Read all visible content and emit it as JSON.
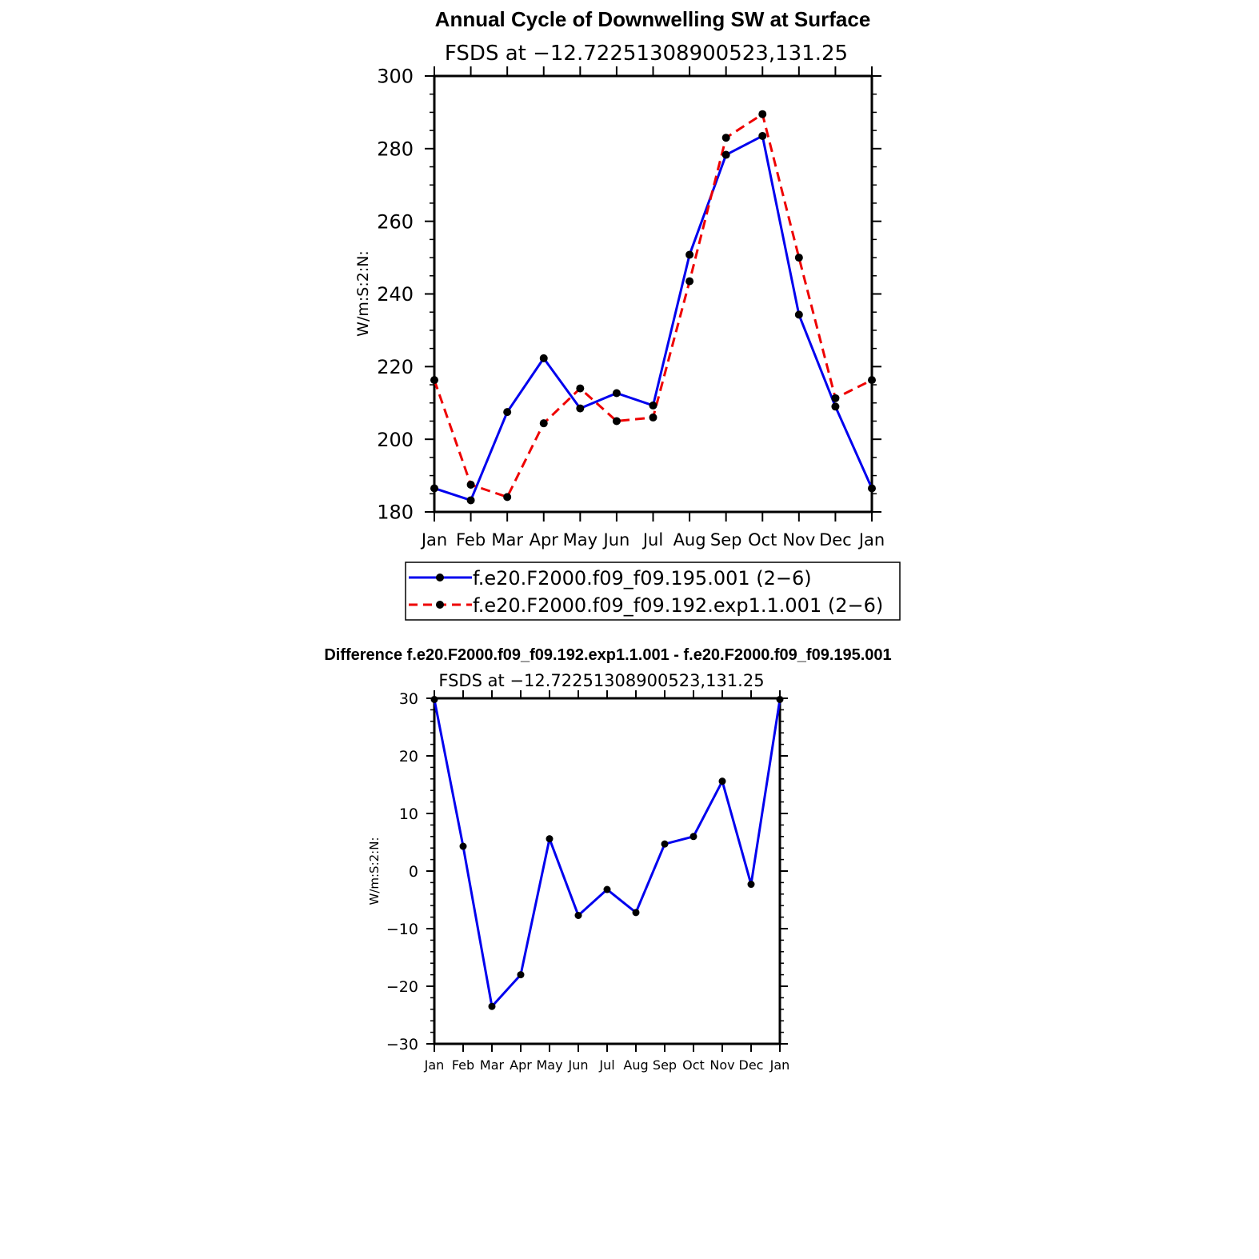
{
  "chart_data": [
    {
      "type": "line",
      "title": "Annual Cycle of Downwelling SW at Surface",
      "subtitle": "FSDS at −12.72251308900523,131.25",
      "ylabel": "W/m:S:2:N:",
      "xlabel": "",
      "categories": [
        "Jan",
        "Feb",
        "Mar",
        "Apr",
        "May",
        "Jun",
        "Jul",
        "Aug",
        "Sep",
        "Oct",
        "Nov",
        "Dec",
        "Jan"
      ],
      "ylim": [
        180,
        300
      ],
      "yticks": [
        "180",
        "200",
        "220",
        "240",
        "260",
        "280",
        "300"
      ],
      "grid": false,
      "legend_position": "bottom",
      "series": [
        {
          "name": "f.e20.F2000.f09_f09.195.001 (2−6)",
          "color": "#0000ee",
          "style": "solid",
          "values": [
            186.5,
            183.2,
            207.5,
            222.3,
            208.5,
            212.7,
            209.3,
            250.8,
            278.3,
            283.5,
            234.3,
            209.0,
            186.5
          ]
        },
        {
          "name": "f.e20.F2000.f09_f09.192.exp1.1.001 (2−6)",
          "color": "#ee0000",
          "style": "dashed",
          "values": [
            216.3,
            187.5,
            184.1,
            204.4,
            214.0,
            205.0,
            206.0,
            243.5,
            283.0,
            289.5,
            250.0,
            211.3,
            216.3
          ]
        }
      ]
    },
    {
      "type": "line",
      "title": "Difference f.e20.F2000.f09_f09.192.exp1.1.001 - f.e20.F2000.f09_f09.195.001",
      "subtitle": "FSDS at −12.72251308900523,131.25",
      "ylabel": "W/m:S:2:N:",
      "xlabel": "",
      "categories": [
        "Jan",
        "Feb",
        "Mar",
        "Apr",
        "May",
        "Jun",
        "Jul",
        "Aug",
        "Sep",
        "Oct",
        "Nov",
        "Dec",
        "Jan"
      ],
      "ylim": [
        -30,
        30
      ],
      "yticks": [
        "−30",
        "−20",
        "−10",
        "0",
        "10",
        "20",
        "30"
      ],
      "grid": false,
      "series": [
        {
          "name": "",
          "color": "#0000ee",
          "style": "solid",
          "values": [
            29.8,
            4.3,
            -23.5,
            -18.0,
            5.6,
            -7.7,
            -3.2,
            -7.2,
            4.7,
            6.0,
            15.6,
            -2.3,
            29.8
          ]
        }
      ]
    }
  ]
}
